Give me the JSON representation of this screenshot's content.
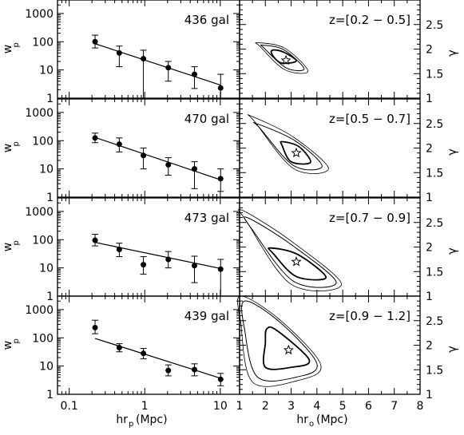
{
  "figure": {
    "left_column_xlabel": "hr",
    "left_column_xlabel_sub": "p",
    "left_column_xlabel_unit": "(Mpc)",
    "right_column_xlabel": "hr",
    "right_column_xlabel_sub": "o",
    "right_column_xlabel_unit": "(Mpc)",
    "left_ylabel": "w",
    "left_ylabel_sub": "p",
    "right_ylabel": "γ"
  },
  "chart_data": [
    {
      "type": "scatter",
      "panel": "wp-436",
      "annotation": "436 gal",
      "xscale": "log",
      "yscale": "log",
      "xlim": [
        0.07,
        18
      ],
      "ylim": [
        1,
        3000
      ],
      "xticklabels": [
        "0.1",
        "1",
        "10"
      ],
      "yticklabels": [
        "1",
        "10",
        "100",
        "1000"
      ],
      "points": [
        {
          "x": 0.22,
          "y": 100,
          "lo": 60,
          "hi": 170
        },
        {
          "x": 0.46,
          "y": 40,
          "lo": 13,
          "hi": 70
        },
        {
          "x": 0.96,
          "y": 25,
          "lo": 1,
          "hi": 50
        },
        {
          "x": 2.05,
          "y": 12,
          "lo": 4,
          "hi": 20
        },
        {
          "x": 4.55,
          "y": 7,
          "lo": 2.2,
          "hi": 13
        },
        {
          "x": 10.1,
          "y": 2.3,
          "lo": 1,
          "hi": 7
        }
      ],
      "fit": {
        "x": [
          0.22,
          10.1
        ],
        "y": [
          85,
          2.9
        ]
      }
    },
    {
      "type": "scatter",
      "panel": "wp-470",
      "annotation": "470 gal",
      "xscale": "log",
      "yscale": "log",
      "xlim": [
        0.07,
        18
      ],
      "ylim": [
        1,
        3000
      ],
      "xticklabels": [
        "0.1",
        "1",
        "10"
      ],
      "yticklabels": [
        "1",
        "10",
        "100",
        "1000"
      ],
      "points": [
        {
          "x": 0.22,
          "y": 125,
          "lo": 85,
          "hi": 185
        },
        {
          "x": 0.46,
          "y": 75,
          "lo": 40,
          "hi": 125
        },
        {
          "x": 0.96,
          "y": 30,
          "lo": 10,
          "hi": 55
        },
        {
          "x": 2.05,
          "y": 14,
          "lo": 6,
          "hi": 25
        },
        {
          "x": 4.55,
          "y": 10,
          "lo": 2,
          "hi": 18
        },
        {
          "x": 10.1,
          "y": 4.5,
          "lo": 1.6,
          "hi": 10
        }
      ],
      "fit": {
        "x": [
          0.22,
          10.1
        ],
        "y": [
          130,
          4.1
        ]
      }
    },
    {
      "type": "scatter",
      "panel": "wp-473",
      "annotation": "473 gal",
      "xscale": "log",
      "yscale": "log",
      "xlim": [
        0.07,
        18
      ],
      "ylim": [
        1,
        3000
      ],
      "xticklabels": [
        "0.1",
        "1",
        "10"
      ],
      "yticklabels": [
        "1",
        "10",
        "100",
        "1000"
      ],
      "points": [
        {
          "x": 0.22,
          "y": 95,
          "lo": 60,
          "hi": 155
        },
        {
          "x": 0.46,
          "y": 45,
          "lo": 25,
          "hi": 75
        },
        {
          "x": 0.96,
          "y": 13,
          "lo": 6,
          "hi": 25
        },
        {
          "x": 2.05,
          "y": 20,
          "lo": 10,
          "hi": 38
        },
        {
          "x": 4.55,
          "y": 12,
          "lo": 3,
          "hi": 26
        },
        {
          "x": 10.1,
          "y": 9,
          "lo": 1,
          "hi": 20
        }
      ],
      "fit": {
        "x": [
          0.22,
          10.1
        ],
        "y": [
          80,
          9.5
        ]
      }
    },
    {
      "type": "scatter",
      "panel": "wp-439",
      "annotation": "439 gal",
      "xscale": "log",
      "yscale": "log",
      "xlim": [
        0.07,
        18
      ],
      "ylim": [
        1,
        3000
      ],
      "xticklabels": [
        "0.1",
        "1",
        "10"
      ],
      "yticklabels": [
        "1",
        "10",
        "100",
        "1000"
      ],
      "points": [
        {
          "x": 0.22,
          "y": 230,
          "lo": 140,
          "hi": 420
        },
        {
          "x": 0.46,
          "y": 45,
          "lo": 32,
          "hi": 62
        },
        {
          "x": 0.96,
          "y": 28,
          "lo": 18,
          "hi": 42
        },
        {
          "x": 2.05,
          "y": 7,
          "lo": 4.5,
          "hi": 11
        },
        {
          "x": 4.55,
          "y": 7.5,
          "lo": 4.5,
          "hi": 12
        },
        {
          "x": 10.1,
          "y": 3.4,
          "lo": 2,
          "hi": 5.5
        }
      ],
      "fit": {
        "x": [
          0.22,
          10.1
        ],
        "y": [
          95,
          3.7
        ]
      }
    },
    {
      "type": "scatter",
      "panel": "contour-z1",
      "annotation": "z=[0.2 − 0.5]",
      "xlim": [
        1,
        8
      ],
      "ylim": [
        1,
        3
      ],
      "xticklabels": [
        "1",
        "2",
        "3",
        "4",
        "5",
        "6",
        "7",
        "8"
      ],
      "yticklabels": [
        "1",
        "1.5",
        "2",
        "2.5"
      ],
      "best_fit": {
        "x": 2.8,
        "y": 1.77
      },
      "contours": [
        [
          [
            2.3,
            1.98
          ],
          [
            2.7,
            1.94
          ],
          [
            3.2,
            1.76
          ],
          [
            2.6,
            1.72
          ],
          [
            2.25,
            1.9
          ]
        ],
        [
          [
            1.9,
            2.08
          ],
          [
            2.7,
            1.99
          ],
          [
            3.5,
            1.6
          ],
          [
            2.8,
            1.62
          ],
          [
            1.95,
            2.02
          ]
        ],
        [
          [
            1.7,
            2.13
          ],
          [
            2.75,
            2.02
          ],
          [
            3.65,
            1.55
          ],
          [
            2.75,
            1.58
          ],
          [
            1.8,
            2.05
          ]
        ]
      ]
    },
    {
      "type": "scatter",
      "panel": "contour-z2",
      "annotation": "z=[0.5 − 0.7]",
      "xlim": [
        1,
        8
      ],
      "ylim": [
        1,
        3
      ],
      "xticklabels": [
        "1",
        "2",
        "3",
        "4",
        "5",
        "6",
        "7",
        "8"
      ],
      "yticklabels": [
        "1",
        "1.5",
        "2",
        "2.5"
      ],
      "best_fit": {
        "x": 3.2,
        "y": 1.9
      },
      "contours": [
        [
          [
            2.65,
            2.13
          ],
          [
            3.3,
            2.03
          ],
          [
            3.75,
            1.71
          ],
          [
            3.0,
            1.72
          ],
          [
            2.65,
            2.05
          ]
        ],
        [
          [
            1.65,
            2.5
          ],
          [
            3.15,
            2.15
          ],
          [
            4.2,
            1.63
          ],
          [
            3.1,
            1.64
          ],
          [
            1.8,
            2.4
          ]
        ],
        [
          [
            1.45,
            2.65
          ],
          [
            3.1,
            2.22
          ],
          [
            4.45,
            1.58
          ],
          [
            3.1,
            1.58
          ],
          [
            1.6,
            2.53
          ]
        ]
      ]
    },
    {
      "type": "scatter",
      "panel": "contour-z3",
      "annotation": "z=[0.7 − 0.9]",
      "xlim": [
        1,
        8
      ],
      "ylim": [
        1,
        3
      ],
      "xticklabels": [
        "1",
        "2",
        "3",
        "4",
        "5",
        "6",
        "7",
        "8"
      ],
      "yticklabels": [
        "1",
        "1.5",
        "2",
        "2.5"
      ],
      "best_fit": {
        "x": 3.2,
        "y": 1.7
      },
      "contours": [
        [
          [
            2.2,
            1.98
          ],
          [
            3.25,
            1.85
          ],
          [
            4.35,
            1.38
          ],
          [
            3.2,
            1.4
          ],
          [
            2.3,
            1.87
          ]
        ],
        [
          [
            1.3,
            2.6
          ],
          [
            3.0,
            2.05
          ],
          [
            4.75,
            1.28
          ],
          [
            3.1,
            1.3
          ],
          [
            1.5,
            2.35
          ]
        ],
        [
          [
            1.1,
            2.75
          ],
          [
            3.0,
            2.12
          ],
          [
            4.95,
            1.24
          ],
          [
            3.0,
            1.24
          ],
          [
            1.3,
            2.5
          ]
        ]
      ]
    },
    {
      "type": "scatter",
      "panel": "contour-z4",
      "annotation": "z=[0.9 − 1.2]",
      "xlim": [
        1,
        8
      ],
      "ylim": [
        1,
        3
      ],
      "xticklabels": [
        "1",
        "2",
        "3",
        "4",
        "5",
        "6",
        "7",
        "8"
      ],
      "yticklabels": [
        "1",
        "1.5",
        "2",
        "2.5"
      ],
      "best_fit": {
        "x": 2.9,
        "y": 1.9
      },
      "contours": [
        [
          [
            2.05,
            2.33
          ],
          [
            2.45,
            2.3
          ],
          [
            3.7,
            1.7
          ],
          [
            3.0,
            1.55
          ],
          [
            2.0,
            1.55
          ],
          [
            2.0,
            2.05
          ]
        ],
        [
          [
            1.2,
            2.9
          ],
          [
            2.6,
            2.45
          ],
          [
            4.0,
            1.62
          ],
          [
            3.2,
            1.35
          ],
          [
            1.7,
            1.35
          ],
          [
            1.2,
            2.3
          ]
        ],
        [
          [
            1.05,
            3.0
          ],
          [
            2.6,
            2.5
          ],
          [
            4.15,
            1.6
          ],
          [
            3.25,
            1.28
          ],
          [
            1.5,
            1.25
          ],
          [
            1.05,
            2.45
          ]
        ]
      ]
    }
  ]
}
